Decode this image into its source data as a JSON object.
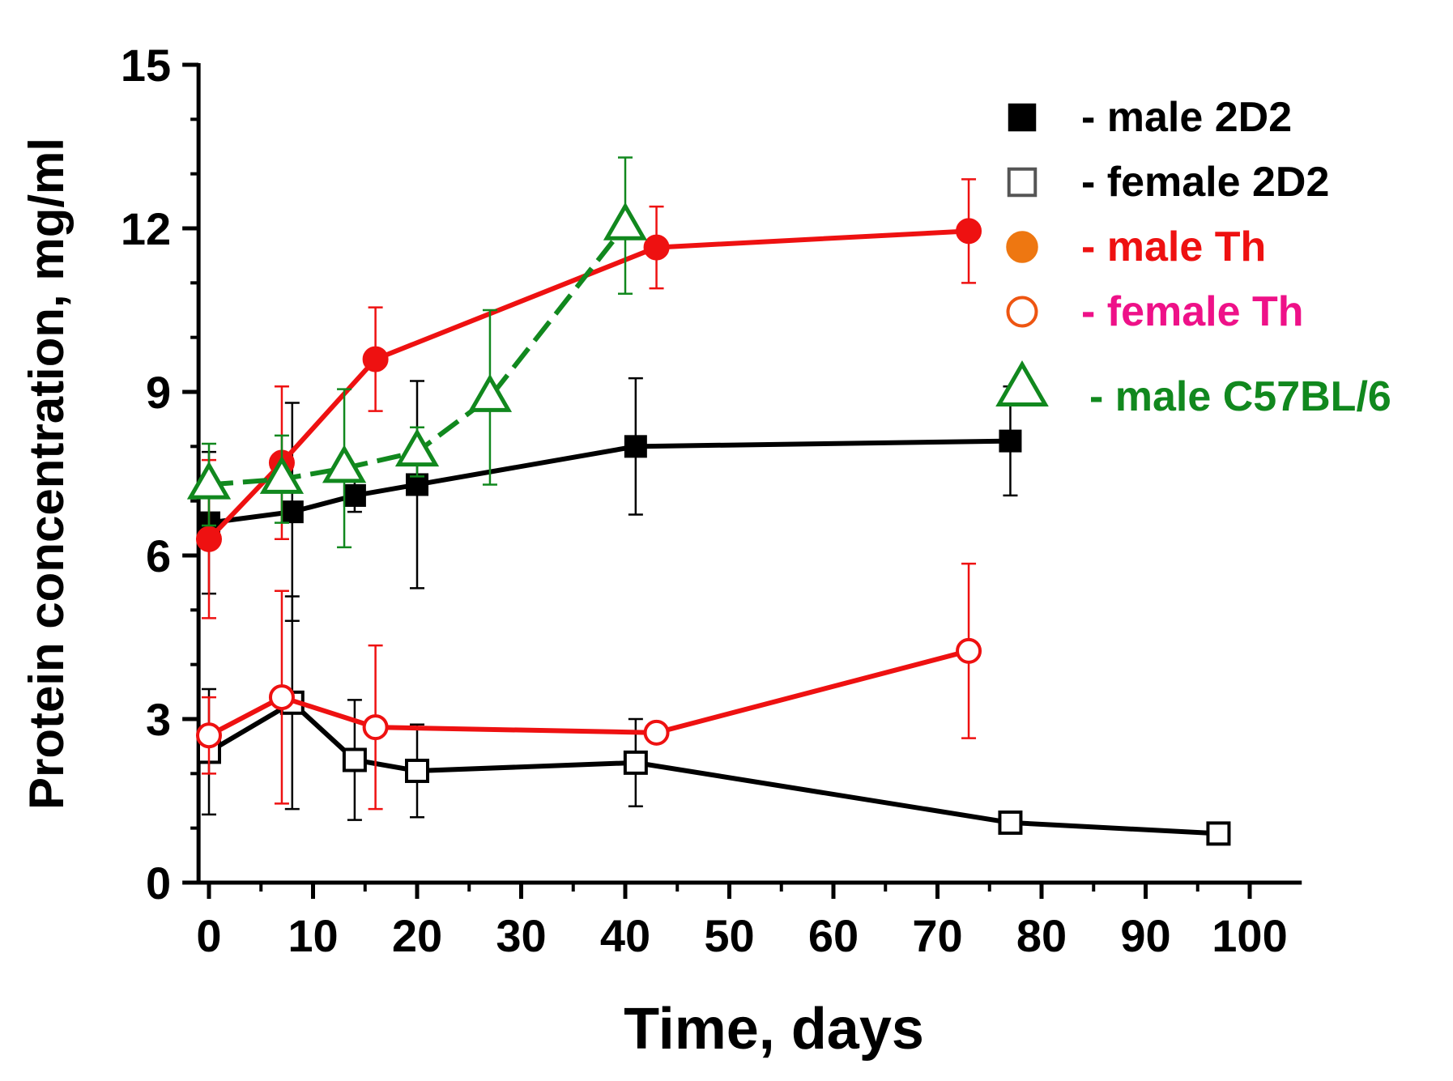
{
  "chart_data": {
    "type": "line",
    "title": "",
    "xlabel": "Time, days",
    "ylabel": "Protein concentration, mg/ml",
    "xlim": [
      -1,
      105
    ],
    "ylim": [
      0,
      15
    ],
    "x_ticks": [
      0,
      10,
      20,
      30,
      40,
      50,
      60,
      70,
      80,
      90,
      100
    ],
    "x_tick_labels": [
      "0",
      "10",
      "20",
      "30",
      "40",
      "50",
      "60",
      "70",
      "80",
      "90",
      "100"
    ],
    "y_ticks": [
      0,
      3,
      6,
      9,
      12,
      15
    ],
    "y_tick_labels": [
      "0",
      "3",
      "6",
      "9",
      "12",
      "15"
    ],
    "grid": false,
    "legend_position": "top-right",
    "series": [
      {
        "name": "male 2D2",
        "legend_label": "- male 2D2",
        "marker": "square-filled",
        "line_style": "solid",
        "color": "#000000",
        "legend_text_color": "#000000",
        "legend_marker_color": "#000000",
        "x": [
          0,
          8,
          14,
          20,
          41,
          77
        ],
        "y": [
          6.6,
          6.8,
          7.1,
          7.3,
          8.0,
          8.1
        ],
        "err": [
          1.3,
          2.0,
          0.3,
          1.9,
          1.25,
          1.0
        ]
      },
      {
        "name": "female 2D2",
        "legend_label": "- female 2D2",
        "marker": "square-open",
        "line_style": "solid",
        "color": "#000000",
        "legend_text_color": "#000000",
        "legend_marker_color": "#555555",
        "x": [
          0,
          8,
          14,
          20,
          41,
          77,
          97
        ],
        "y": [
          2.4,
          3.3,
          2.25,
          2.05,
          2.2,
          1.1,
          0.9
        ],
        "err": [
          1.15,
          1.95,
          1.1,
          0.85,
          0.8,
          0,
          0
        ]
      },
      {
        "name": "male Th",
        "legend_label": "- male Th",
        "marker": "circle-filled",
        "line_style": "solid",
        "color": "#ee1111",
        "legend_text_color": "#ee1111",
        "legend_marker_color": "#ee7711",
        "x": [
          0,
          7,
          16,
          43,
          73
        ],
        "y": [
          6.3,
          7.7,
          9.6,
          11.65,
          11.95
        ],
        "err": [
          1.45,
          1.4,
          0.95,
          0.75,
          0.95
        ]
      },
      {
        "name": "female Th",
        "legend_label": "- female Th",
        "marker": "circle-open",
        "line_style": "solid",
        "color": "#ee1111",
        "legend_text_color": "#ee1188",
        "legend_marker_color": "#ee5511",
        "x": [
          0,
          7,
          16,
          43,
          73
        ],
        "y": [
          2.7,
          3.4,
          2.85,
          2.75,
          4.25
        ],
        "err": [
          0.7,
          1.95,
          1.5,
          0,
          1.6
        ]
      },
      {
        "name": "male C57BL/6",
        "legend_label": "- male C57BL/6",
        "marker": "triangle-open",
        "line_style": "dashed",
        "color": "#11881e",
        "legend_text_color": "#11881e",
        "legend_marker_color": "#11881e",
        "x": [
          0,
          7,
          13,
          20,
          27,
          40
        ],
        "y": [
          7.3,
          7.4,
          7.6,
          7.9,
          8.9,
          12.05
        ],
        "err": [
          0.75,
          0.8,
          1.45,
          0.45,
          1.6,
          1.25
        ]
      }
    ]
  }
}
